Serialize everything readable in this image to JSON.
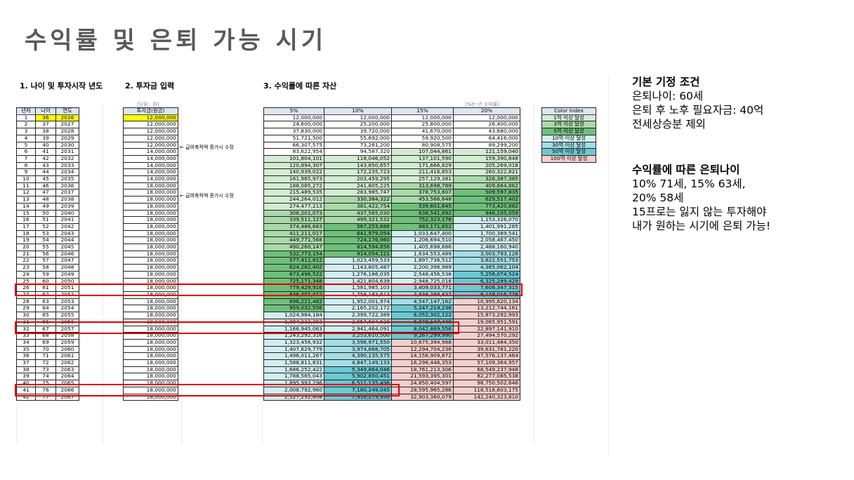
{
  "title": "수익률 및 은퇴 가능 시기",
  "section1": "1. 나이 및 투자시작 년도",
  "section2": "2. 투자금 입력",
  "section3": "3. 수익률에 따른 자산",
  "unit_note": "[단위 : 원]",
  "rate_note": "[%는 년 수익률]",
  "notes": [
    "← 급여축적액 증가시 수정",
    "← 급여축적액 증가시 수정"
  ],
  "left_headers": [
    "년차",
    "나이",
    "연도"
  ],
  "invest_header": "투자금(원금)",
  "rate_headers": [
    "5%",
    "10%",
    "15%",
    "20%"
  ],
  "rows": [
    {
      "n": "1",
      "age": "36",
      "year": "2026",
      "inv": "12,000,000",
      "v": [
        "12,000,000",
        "12,000,000",
        "12,000,000",
        "12,000,000"
      ]
    },
    {
      "n": "2",
      "age": "37",
      "year": "2027",
      "inv": "12,000,000",
      "v": [
        "24,600,000",
        "25,200,000",
        "25,800,000",
        "26,400,000"
      ]
    },
    {
      "n": "3",
      "age": "38",
      "year": "2028",
      "inv": "12,000,000",
      "v": [
        "37,830,000",
        "39,720,000",
        "41,670,000",
        "43,680,000"
      ]
    },
    {
      "n": "4",
      "age": "39",
      "year": "2029",
      "inv": "12,000,000",
      "v": [
        "51,721,500",
        "55,692,000",
        "59,920,500",
        "64,416,000"
      ]
    },
    {
      "n": "5",
      "age": "40",
      "year": "2030",
      "inv": "12,000,000",
      "v": [
        "66,307,575",
        "73,261,200",
        "80,908,575",
        "89,299,200"
      ]
    },
    {
      "n": "6",
      "age": "41",
      "year": "2031",
      "inv": "14,000,000",
      "v": [
        "83,622,954",
        "94,587,320",
        "107,044,861",
        "121,159,040"
      ]
    },
    {
      "n": "7",
      "age": "42",
      "year": "2032",
      "inv": "14,000,000",
      "v": [
        "101,804,101",
        "118,046,052",
        "137,101,590",
        "159,390,848"
      ]
    },
    {
      "n": "8",
      "age": "43",
      "year": "2033",
      "inv": "14,000,000",
      "v": [
        "120,894,307",
        "143,850,657",
        "171,666,829",
        "205,269,018"
      ]
    },
    {
      "n": "9",
      "age": "44",
      "year": "2034",
      "inv": "14,000,000",
      "v": [
        "140,939,022",
        "172,235,723",
        "211,416,853",
        "260,322,821"
      ]
    },
    {
      "n": "10",
      "age": "45",
      "year": "2035",
      "inv": "14,000,000",
      "v": [
        "161,985,973",
        "203,459,295",
        "257,129,381",
        "326,387,385"
      ]
    },
    {
      "n": "11",
      "age": "46",
      "year": "2036",
      "inv": "18,000,000",
      "v": [
        "188,085,272",
        "241,805,225",
        "313,698,789",
        "409,664,862"
      ]
    },
    {
      "n": "12",
      "age": "47",
      "year": "2037",
      "inv": "18,000,000",
      "v": [
        "215,489,535",
        "283,985,747",
        "378,753,607",
        "509,597,835"
      ]
    },
    {
      "n": "13",
      "age": "48",
      "year": "2038",
      "inv": "18,000,000",
      "v": [
        "244,264,012",
        "330,384,322",
        "453,566,648",
        "629,517,402"
      ]
    },
    {
      "n": "14",
      "age": "49",
      "year": "2039",
      "inv": "18,000,000",
      "v": [
        "274,477,213",
        "381,422,754",
        "539,601,645",
        "773,420,882"
      ]
    },
    {
      "n": "15",
      "age": "50",
      "year": "2040",
      "inv": "18,000,000",
      "v": [
        "306,201,073",
        "437,565,030",
        "638,541,892",
        "946,105,059"
      ]
    },
    {
      "n": "16",
      "age": "51",
      "year": "2041",
      "inv": "18,000,000",
      "v": [
        "339,511,127",
        "499,321,532",
        "752,323,176",
        "1,153,326,070"
      ]
    },
    {
      "n": "17",
      "age": "52",
      "year": "2042",
      "inv": "18,000,000",
      "v": [
        "374,486,683",
        "567,253,686",
        "883,171,652",
        "1,401,991,285"
      ]
    },
    {
      "n": "18",
      "age": "53",
      "year": "2043",
      "inv": "18,000,000",
      "v": [
        "411,211,017",
        "641,979,054",
        "1,033,647,400",
        "1,700,389,541"
      ]
    },
    {
      "n": "19",
      "age": "54",
      "year": "2044",
      "inv": "18,000,000",
      "v": [
        "449,771,568",
        "724,176,960",
        "1,206,694,510",
        "2,058,467,450"
      ]
    },
    {
      "n": "20",
      "age": "55",
      "year": "2045",
      "inv": "18,000,000",
      "v": [
        "490,260,147",
        "814,594,656",
        "1,405,698,686",
        "2,488,160,940"
      ]
    },
    {
      "n": "21",
      "age": "56",
      "year": "2046",
      "inv": "18,000,000",
      "v": [
        "532,773,154",
        "914,054,121",
        "1,634,553,489",
        "3,003,793,128"
      ]
    },
    {
      "n": "22",
      "age": "57",
      "year": "2047",
      "inv": "18,000,000",
      "v": [
        "577,411,812",
        "1,023,459,533",
        "1,897,736,512",
        "3,622,551,753"
      ]
    },
    {
      "n": "23",
      "age": "58",
      "year": "2048",
      "inv": "18,000,000",
      "v": [
        "624,282,402",
        "1,143,805,487",
        "2,200,396,989",
        "4,365,062,104"
      ]
    },
    {
      "n": "24",
      "age": "59",
      "year": "2049",
      "inv": "18,000,000",
      "v": [
        "673,496,522",
        "1,276,186,035",
        "2,548,456,538",
        "5,256,074,524"
      ]
    },
    {
      "n": "25",
      "age": "60",
      "year": "2050",
      "inv": "18,000,000",
      "v": [
        "725,171,348",
        "1,421,804,639",
        "2,948,725,018",
        "6,325,289,429"
      ]
    },
    {
      "n": "26",
      "age": "61",
      "year": "2051",
      "inv": "18,000,000",
      "v": [
        "779,429,916",
        "1,581,985,103",
        "3,409,033,771",
        "7,608,347,315"
      ]
    },
    {
      "n": "27",
      "age": "62",
      "year": "2052",
      "inv": "18,000,000",
      "v": [
        "836,401,412",
        "1,758,183,613",
        "3,938,388,837",
        "9,148,016,778"
      ]
    },
    {
      "n": "28",
      "age": "63",
      "year": "2053",
      "inv": "18,000,000",
      "v": [
        "896,221,482",
        "1,952,001,974",
        "4,547,147,162",
        "10,995,620,134"
      ]
    },
    {
      "n": "29",
      "age": "64",
      "year": "2054",
      "inv": "18,000,000",
      "v": [
        "959,032,556",
        "2,165,202,172",
        "5,247,219,236",
        "13,212,744,161"
      ]
    },
    {
      "n": "30",
      "age": "65",
      "year": "2055",
      "inv": "18,000,000",
      "v": [
        "1,024,984,184",
        "2,399,722,389",
        "6,052,302,122",
        "15,873,292,993"
      ]
    },
    {
      "n": "31",
      "age": "66",
      "year": "2056",
      "inv": "18,000,000",
      "v": [
        "1,094,233,393",
        "2,657,694,628",
        "6,978,147,440",
        "19,065,951,591"
      ]
    },
    {
      "n": "32",
      "age": "67",
      "year": "2057",
      "inv": "18,000,000",
      "v": [
        "1,166,945,063",
        "2,941,464,091",
        "8,042,869,556",
        "22,897,141,910"
      ]
    },
    {
      "n": "33",
      "age": "68",
      "year": "2058",
      "inv": "18,000,000",
      "v": [
        "1,243,292,316",
        "3,253,610,500",
        "9,267,299,990",
        "27,494,570,292"
      ]
    },
    {
      "n": "34",
      "age": "69",
      "year": "2059",
      "inv": "18,000,000",
      "v": [
        "1,323,456,932",
        "3,596,971,550",
        "10,675,394,988",
        "33,011,484,350"
      ]
    },
    {
      "n": "35",
      "age": "70",
      "year": "2060",
      "inv": "18,000,000",
      "v": [
        "1,407,629,779",
        "3,974,668,705",
        "12,294,704,236",
        "39,631,781,220"
      ]
    },
    {
      "n": "36",
      "age": "71",
      "year": "2061",
      "inv": "18,000,000",
      "v": [
        "1,496,011,267",
        "4,390,135,575",
        "14,156,909,872",
        "47,576,137,464"
      ]
    },
    {
      "n": "37",
      "age": "72",
      "year": "2062",
      "inv": "18,000,000",
      "v": [
        "1,588,811,831",
        "4,847,149,133",
        "16,298,446,353",
        "57,109,364,957"
      ]
    },
    {
      "n": "38",
      "age": "73",
      "year": "2063",
      "inv": "18,000,000",
      "v": [
        "1,686,252,422",
        "5,349,864,046",
        "18,761,213,306",
        "68,549,237,948"
      ]
    },
    {
      "n": "39",
      "age": "74",
      "year": "2064",
      "inv": "18,000,000",
      "v": [
        "1,788,565,043",
        "5,902,850,451",
        "21,593,395,301",
        "82,277,085,538"
      ]
    },
    {
      "n": "40",
      "age": "75",
      "year": "2065",
      "inv": "18,000,000",
      "v": [
        "1,895,993,296",
        "6,511,135,496",
        "24,850,404,597",
        "98,750,502,646"
      ]
    },
    {
      "n": "41",
      "age": "76",
      "year": "2066",
      "inv": "18,000,000",
      "v": [
        "2,008,792,960",
        "7,180,249,045",
        "28,595,965,286",
        "118,518,603,175"
      ]
    },
    {
      "n": "42",
      "age": "77",
      "year": "2067",
      "inv": "18,000,000",
      "v": [
        "2,127,232,608",
        "7,916,273,950",
        "32,903,360,079",
        "142,240,323,810"
      ]
    }
  ],
  "color_index": {
    "header": "Color Index",
    "items": [
      {
        "label": "1억 이상 달성",
        "color": "#d3ecd2"
      },
      {
        "label": "3억 이상 달성",
        "color": "#a9d9a9"
      },
      {
        "label": "5억 이상 달성",
        "color": "#6fbf7a"
      },
      {
        "label": "10억 이상 달성",
        "color": "#d2eef2"
      },
      {
        "label": "30억 이상 달성",
        "color": "#a4dde4"
      },
      {
        "label": "50억 이상 달성",
        "color": "#6cc8d2"
      },
      {
        "label": "100억 이상 달성",
        "color": "#f6cfcc"
      }
    ]
  },
  "colors": {
    "highlight_input": "#ffff00",
    "header_fill": "#dce6f1",
    "red_box": "#e00000"
  },
  "assumptions": {
    "heading": "기본 기정 조건",
    "lines": [
      "은퇴나이: 60세",
      "은퇴 후 노후 필요자금: 40억",
      "전세상승분 제외"
    ]
  },
  "retire_by_rate": {
    "heading": "수익률에 따른 은퇴나이",
    "lines": [
      "10% 71세, 15% 63세,",
      "20% 58세",
      "15프로는 잃지 않는 투자해야",
      "내가 원하는 시기에 은퇴 가능!"
    ]
  }
}
